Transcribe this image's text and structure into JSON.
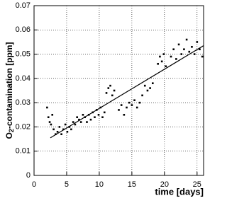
{
  "chart_data": {
    "type": "scatter",
    "x_label": "time [days]",
    "y_label": [
      "O",
      "2",
      "-contamination [ppm]"
    ],
    "xlim": [
      0,
      26
    ],
    "xticks": [
      0,
      5,
      10,
      15,
      20,
      25
    ],
    "ylim": [
      0,
      0.07
    ],
    "yticks": [
      0,
      0.01,
      0.02,
      0.03,
      0.04,
      0.05,
      0.06,
      0.07
    ],
    "grid": true,
    "series": [
      {
        "type": "scatter",
        "color": "#000000",
        "x": [
          2.0,
          2.2,
          2.4,
          2.6,
          2.8,
          3.0,
          3.3,
          3.6,
          3.9,
          4.2,
          4.5,
          4.8,
          5.1,
          5.4,
          5.7,
          6.0,
          6.3,
          6.6,
          6.9,
          7.2,
          7.5,
          7.8,
          8.1,
          8.4,
          8.7,
          9.0,
          9.3,
          9.6,
          9.9,
          10.2,
          10.5,
          10.8,
          11.1,
          11.4,
          11.7,
          12.0,
          12.3,
          13.0,
          13.4,
          13.8,
          14.2,
          14.6,
          15.0,
          15.4,
          15.8,
          16.2,
          16.6,
          17.0,
          17.4,
          17.8,
          18.2,
          19.0,
          19.3,
          19.6,
          19.9,
          20.2,
          21.0,
          21.4,
          21.8,
          22.2,
          22.6,
          23.0,
          23.4,
          23.8,
          24.2,
          24.6,
          25.0,
          25.4,
          25.8
        ],
        "values": [
          0.028,
          0.024,
          0.022,
          0.021,
          0.025,
          0.019,
          0.017,
          0.018,
          0.02,
          0.017,
          0.019,
          0.021,
          0.018,
          0.02,
          0.019,
          0.022,
          0.021,
          0.024,
          0.023,
          0.022,
          0.025,
          0.024,
          0.022,
          0.025,
          0.023,
          0.026,
          0.024,
          0.027,
          0.025,
          0.028,
          0.024,
          0.026,
          0.034,
          0.036,
          0.037,
          0.033,
          0.035,
          0.027,
          0.029,
          0.025,
          0.028,
          0.03,
          0.029,
          0.031,
          0.028,
          0.03,
          0.033,
          0.037,
          0.035,
          0.036,
          0.038,
          0.046,
          0.049,
          0.047,
          0.05,
          0.045,
          0.049,
          0.052,
          0.048,
          0.054,
          0.05,
          0.052,
          0.056,
          0.051,
          0.053,
          0.05,
          0.055,
          0.052,
          0.049
        ]
      },
      {
        "type": "line",
        "color": "#000000",
        "x": [
          2.5,
          26
        ],
        "values": [
          0.0155,
          0.0535
        ]
      }
    ]
  }
}
